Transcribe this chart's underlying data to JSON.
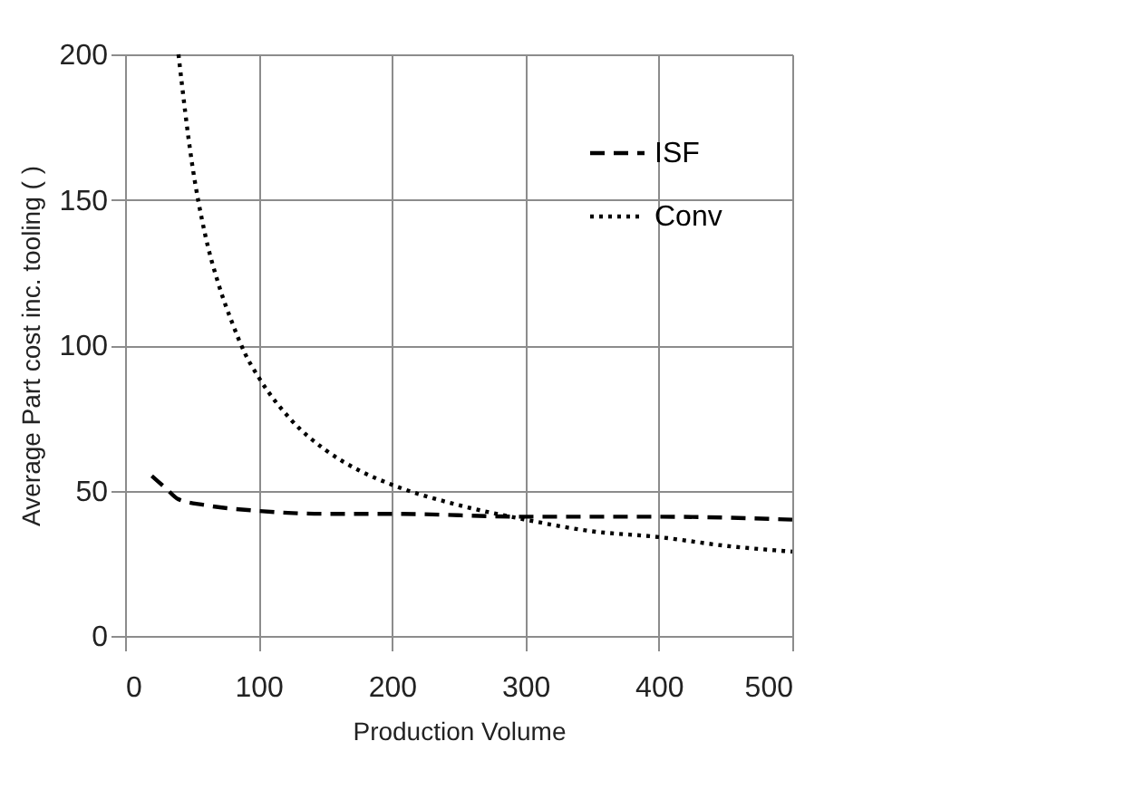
{
  "chart_data": {
    "type": "line",
    "xlabel": "Production Volume",
    "ylabel": "Average Part cost inc. tooling ( )",
    "xlim": [
      0,
      500
    ],
    "xticks": [
      0,
      100,
      200,
      300,
      400,
      500
    ],
    "ylim": [
      0,
      200
    ],
    "yticks": [
      0,
      50,
      100,
      150,
      200
    ],
    "grid": true,
    "legend": "top right",
    "series": [
      {
        "name": "ISF",
        "color": "#000000",
        "line_style": "dashed",
        "x": [
          20,
          30,
          40,
          60,
          100,
          150,
          200,
          300,
          400,
          500
        ],
        "values": [
          55,
          51,
          47,
          45,
          43,
          42,
          42,
          41,
          41,
          40
        ]
      },
      {
        "name": "Conv",
        "color": "#000000",
        "line_style": "dotted",
        "x": [
          40,
          50,
          60,
          70,
          80,
          90,
          100,
          125,
          150,
          175,
          200,
          250,
          300,
          350,
          400,
          450,
          500
        ],
        "values": [
          200,
          163,
          138,
          121,
          108,
          97,
          89,
          74,
          64,
          57,
          52,
          45,
          40,
          36,
          34,
          31,
          29
        ]
      }
    ]
  }
}
